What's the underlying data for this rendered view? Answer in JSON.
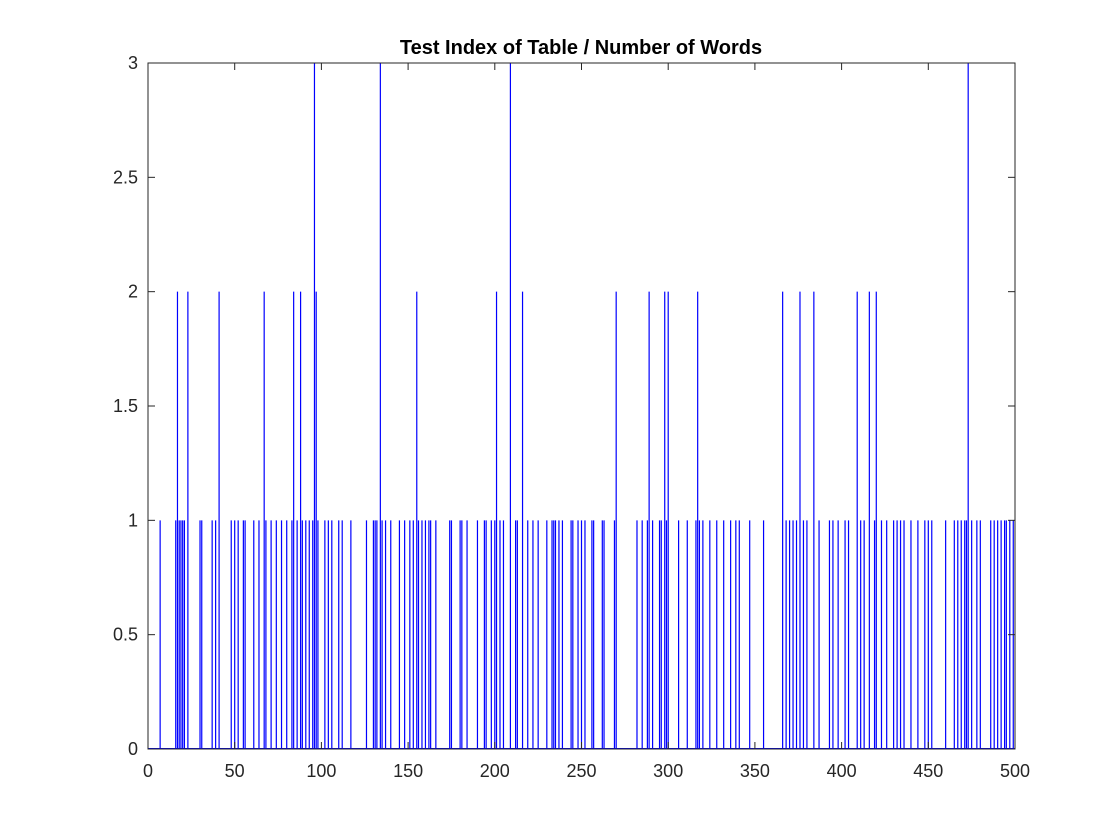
{
  "chart_data": {
    "type": "bar",
    "title": "Test Index of Table / Number of Words",
    "xlabel": "",
    "ylabel": "",
    "xlim": [
      0,
      500
    ],
    "ylim": [
      0,
      3
    ],
    "x_ticks": [
      0,
      50,
      100,
      150,
      200,
      250,
      300,
      350,
      400,
      450,
      500
    ],
    "y_ticks": [
      0,
      0.5,
      1,
      1.5,
      2,
      2.5,
      3
    ],
    "x_tick_labels": [
      "0",
      "50",
      "100",
      "150",
      "200",
      "250",
      "300",
      "350",
      "400",
      "450",
      "500"
    ],
    "y_tick_labels": [
      "0",
      "0.5",
      "1",
      "1.5",
      "2",
      "2.5",
      "3"
    ],
    "grid": false,
    "bar_color": "#0000ff",
    "series": [
      {
        "points": [
          [
            7,
            1
          ],
          [
            16,
            1
          ],
          [
            17,
            2
          ],
          [
            18,
            1
          ],
          [
            19,
            1
          ],
          [
            20,
            1
          ],
          [
            21,
            1
          ],
          [
            23,
            2
          ],
          [
            30,
            1
          ],
          [
            31,
            1
          ],
          [
            37,
            1
          ],
          [
            39,
            1
          ],
          [
            41,
            2
          ],
          [
            48,
            1
          ],
          [
            50,
            1
          ],
          [
            52,
            1
          ],
          [
            55,
            1
          ],
          [
            56,
            1
          ],
          [
            61,
            1
          ],
          [
            64,
            1
          ],
          [
            67,
            2
          ],
          [
            68,
            1
          ],
          [
            71,
            1
          ],
          [
            74,
            1
          ],
          [
            77,
            1
          ],
          [
            80,
            1
          ],
          [
            83,
            1
          ],
          [
            84,
            2
          ],
          [
            86,
            1
          ],
          [
            88,
            2
          ],
          [
            89,
            1
          ],
          [
            91,
            1
          ],
          [
            93,
            1
          ],
          [
            95,
            1
          ],
          [
            96,
            3
          ],
          [
            97,
            2
          ],
          [
            98,
            1
          ],
          [
            102,
            1
          ],
          [
            104,
            1
          ],
          [
            106,
            1
          ],
          [
            110,
            1
          ],
          [
            112,
            1
          ],
          [
            117,
            1
          ],
          [
            126,
            1
          ],
          [
            130,
            1
          ],
          [
            131,
            1
          ],
          [
            132,
            1
          ],
          [
            134,
            3
          ],
          [
            135,
            1
          ],
          [
            137,
            1
          ],
          [
            140,
            1
          ],
          [
            145,
            1
          ],
          [
            148,
            1
          ],
          [
            151,
            1
          ],
          [
            153,
            1
          ],
          [
            155,
            2
          ],
          [
            156,
            1
          ],
          [
            158,
            1
          ],
          [
            160,
            1
          ],
          [
            162,
            1
          ],
          [
            163,
            1
          ],
          [
            166,
            1
          ],
          [
            174,
            1
          ],
          [
            175,
            1
          ],
          [
            180,
            1
          ],
          [
            181,
            1
          ],
          [
            184,
            1
          ],
          [
            190,
            1
          ],
          [
            194,
            1
          ],
          [
            195,
            1
          ],
          [
            198,
            1
          ],
          [
            200,
            1
          ],
          [
            201,
            2
          ],
          [
            203,
            1
          ],
          [
            205,
            1
          ],
          [
            209,
            3
          ],
          [
            212,
            1
          ],
          [
            213,
            1
          ],
          [
            216,
            2
          ],
          [
            219,
            1
          ],
          [
            222,
            1
          ],
          [
            225,
            1
          ],
          [
            230,
            1
          ],
          [
            233,
            1
          ],
          [
            234,
            1
          ],
          [
            235,
            1
          ],
          [
            237,
            1
          ],
          [
            239,
            1
          ],
          [
            244,
            1
          ],
          [
            245,
            1
          ],
          [
            248,
            1
          ],
          [
            250,
            1
          ],
          [
            252,
            1
          ],
          [
            256,
            1
          ],
          [
            257,
            1
          ],
          [
            262,
            1
          ],
          [
            263,
            1
          ],
          [
            269,
            1
          ],
          [
            270,
            2
          ],
          [
            282,
            1
          ],
          [
            285,
            1
          ],
          [
            288,
            1
          ],
          [
            289,
            2
          ],
          [
            291,
            1
          ],
          [
            295,
            1
          ],
          [
            296,
            1
          ],
          [
            298,
            2
          ],
          [
            299,
            1
          ],
          [
            300,
            2
          ],
          [
            306,
            1
          ],
          [
            311,
            1
          ],
          [
            316,
            1
          ],
          [
            317,
            2
          ],
          [
            318,
            1
          ],
          [
            320,
            1
          ],
          [
            324,
            1
          ],
          [
            328,
            1
          ],
          [
            332,
            1
          ],
          [
            336,
            1
          ],
          [
            339,
            1
          ],
          [
            341,
            1
          ],
          [
            347,
            1
          ],
          [
            355,
            1
          ],
          [
            366,
            2
          ],
          [
            368,
            1
          ],
          [
            370,
            1
          ],
          [
            372,
            1
          ],
          [
            374,
            1
          ],
          [
            376,
            2
          ],
          [
            378,
            1
          ],
          [
            380,
            1
          ],
          [
            384,
            2
          ],
          [
            387,
            1
          ],
          [
            393,
            1
          ],
          [
            395,
            1
          ],
          [
            398,
            1
          ],
          [
            402,
            1
          ],
          [
            404,
            1
          ],
          [
            409,
            2
          ],
          [
            411,
            1
          ],
          [
            413,
            1
          ],
          [
            416,
            2
          ],
          [
            419,
            1
          ],
          [
            420,
            2
          ],
          [
            423,
            1
          ],
          [
            426,
            1
          ],
          [
            430,
            1
          ],
          [
            432,
            1
          ],
          [
            434,
            1
          ],
          [
            436,
            1
          ],
          [
            440,
            1
          ],
          [
            444,
            1
          ],
          [
            448,
            1
          ],
          [
            450,
            1
          ],
          [
            452,
            1
          ],
          [
            460,
            1
          ],
          [
            465,
            1
          ],
          [
            467,
            1
          ],
          [
            469,
            1
          ],
          [
            471,
            1
          ],
          [
            472,
            1
          ],
          [
            473,
            3
          ],
          [
            475,
            1
          ],
          [
            478,
            1
          ],
          [
            480,
            1
          ],
          [
            486,
            1
          ],
          [
            488,
            1
          ],
          [
            490,
            1
          ],
          [
            492,
            1
          ],
          [
            494,
            1
          ],
          [
            495,
            1
          ],
          [
            497,
            1
          ],
          [
            499,
            1
          ]
        ]
      }
    ]
  }
}
